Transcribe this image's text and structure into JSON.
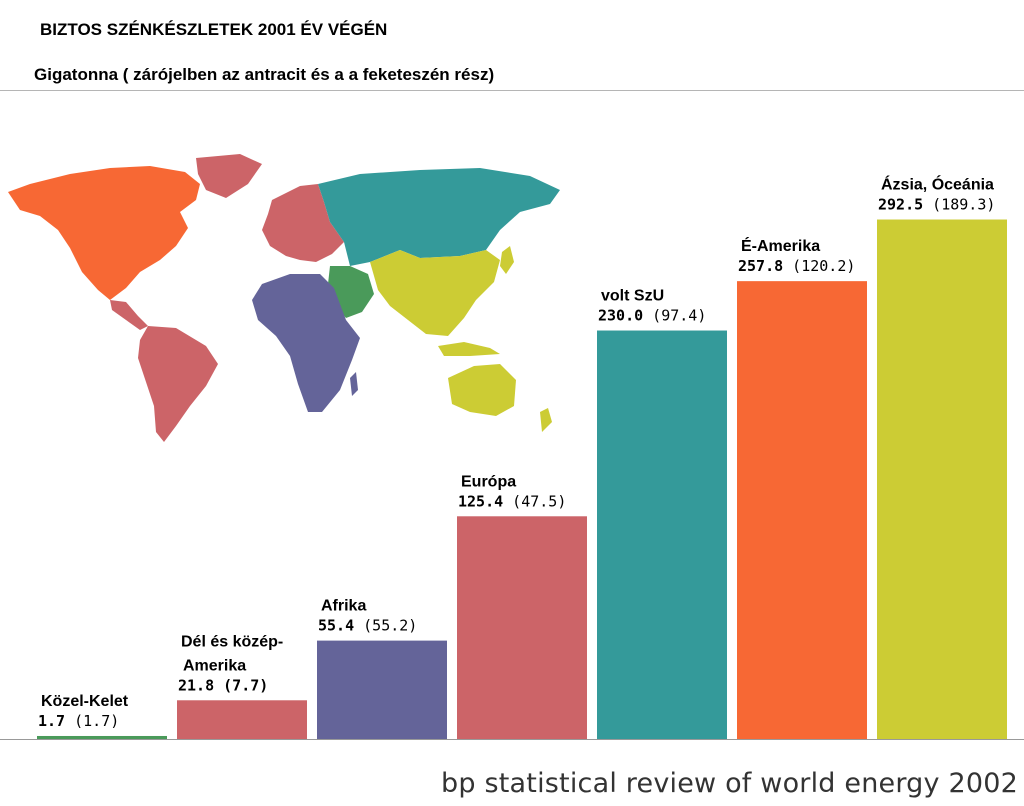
{
  "title": "BIZTOS SZÉNKÉSZLETEK 2001 ÉV VÉGÉN",
  "subtitle": "Gigatonna  ( zárójelben az antracit és a a feketeszén rész)",
  "source": "bp statistical review of world energy 2002",
  "chart_data": {
    "type": "bar",
    "title": "BIZTOS SZÉNKÉSZLETEK 2001 ÉV VÉGÉN",
    "ylabel": "Gigatonna",
    "ylim": [
      0,
      300
    ],
    "grid": false,
    "legend": "none",
    "categories": [
      {
        "name": [
          "Közel-Kelet"
        ],
        "total": 1.7,
        "hard": 1.7,
        "total_label": "1.7",
        "hard_label": "(1.7)",
        "color": "#4a9a5a"
      },
      {
        "name": [
          "Dél és közép-",
          "Amerika"
        ],
        "total": 21.8,
        "hard": 7.7,
        "total_label": "21.8",
        "hard_label": "(7.7)",
        "hard_bold": true,
        "color": "#cc6468"
      },
      {
        "name": [
          "Afrika"
        ],
        "total": 55.4,
        "hard": 55.2,
        "total_label": "55.4",
        "hard_label": "(55.2)",
        "color": "#646499"
      },
      {
        "name": [
          "Európa"
        ],
        "total": 125.4,
        "hard": 47.5,
        "total_label": "125.4",
        "hard_label": "(47.5)",
        "color": "#cc6468"
      },
      {
        "name": [
          "volt SzU"
        ],
        "total": 230.0,
        "hard": 97.4,
        "total_label": "230.0",
        "hard_label": "(97.4)",
        "color": "#349a9a"
      },
      {
        "name": [
          "É-Amerika"
        ],
        "total": 257.8,
        "hard": 120.2,
        "total_label": "257.8",
        "hard_label": "(120.2)",
        "color": "#f76834"
      },
      {
        "name": [
          "Ázsia, Óceánia"
        ],
        "total": 292.5,
        "hard": 189.3,
        "total_label": "292.5",
        "hard_label": "(189.3)",
        "color": "#cccc34"
      }
    ]
  }
}
